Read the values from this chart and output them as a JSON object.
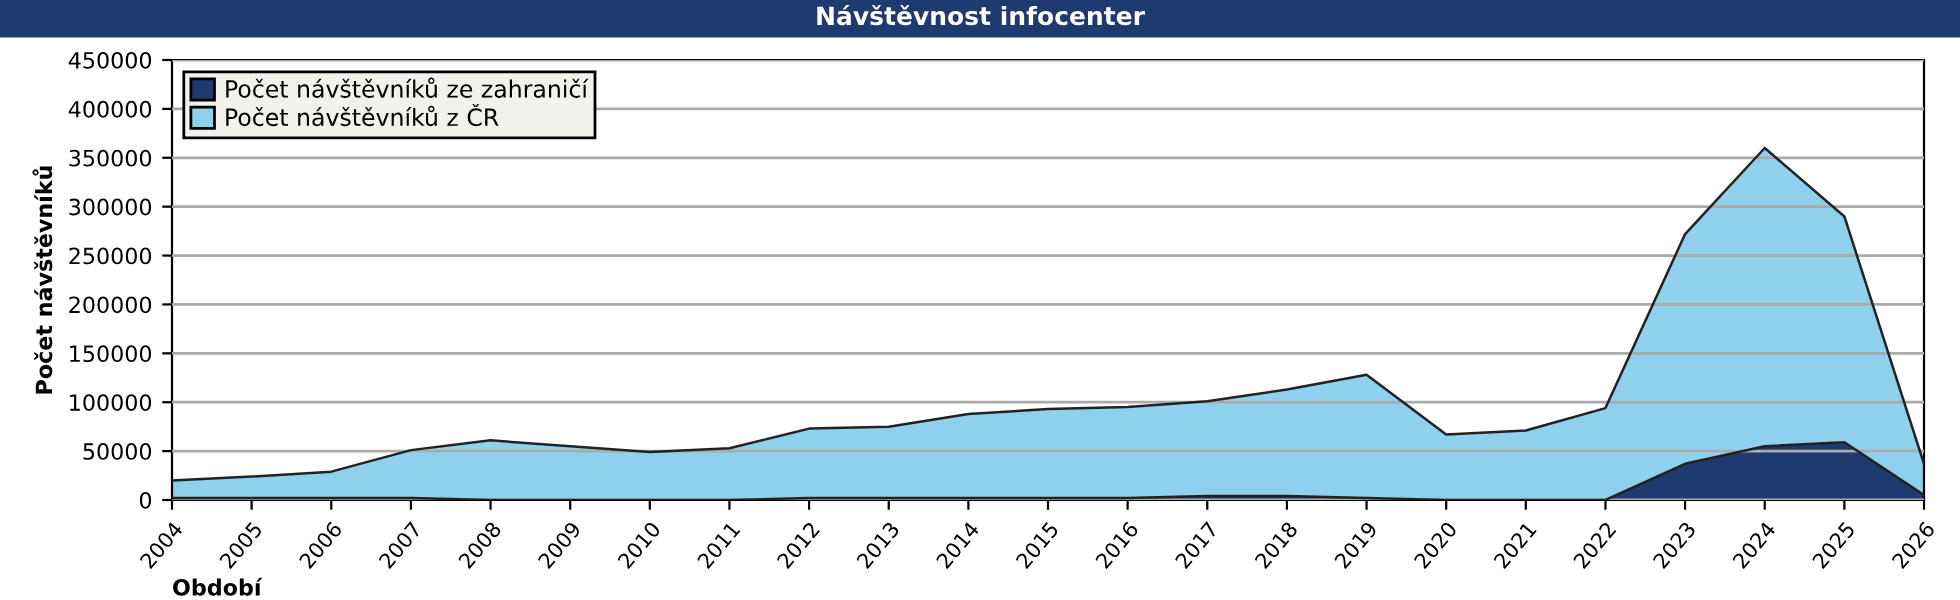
{
  "chart_data": {
    "type": "area",
    "title": "Návštěvnost infocenter",
    "xlabel": "Období",
    "ylabel": "Počet návštěvníků",
    "categories": [
      "2004",
      "2005",
      "2006",
      "2007",
      "2008",
      "2009",
      "2010",
      "2011",
      "2012",
      "2013",
      "2014",
      "2015",
      "2016",
      "2017",
      "2018",
      "2019",
      "2020",
      "2021",
      "2022",
      "2023",
      "2024",
      "2025",
      "2026"
    ],
    "stacked": true,
    "series": [
      {
        "name": "Počet návštěvníků ze zahraničí",
        "color": "#1f3a6e",
        "values": [
          2000,
          2000,
          2000,
          2000,
          0,
          0,
          0,
          0,
          2000,
          2000,
          2000,
          2000,
          2000,
          4000,
          4000,
          2000,
          0,
          0,
          0,
          37000,
          55000,
          59000,
          5000
        ]
      },
      {
        "name": "Počet návštěvníků z ČR",
        "color": "#8fd0ec",
        "values": [
          18000,
          22000,
          27000,
          49000,
          61000,
          55000,
          49000,
          53000,
          71000,
          73000,
          86000,
          91000,
          93000,
          97000,
          109000,
          126000,
          67000,
          71000,
          94000,
          235000,
          305000,
          231000,
          32000
        ]
      }
    ],
    "ylim": [
      0,
      450000
    ],
    "yticks": [
      0,
      50000,
      100000,
      150000,
      200000,
      250000,
      300000,
      350000,
      400000,
      450000
    ],
    "grid": "y",
    "legend": "top left"
  }
}
